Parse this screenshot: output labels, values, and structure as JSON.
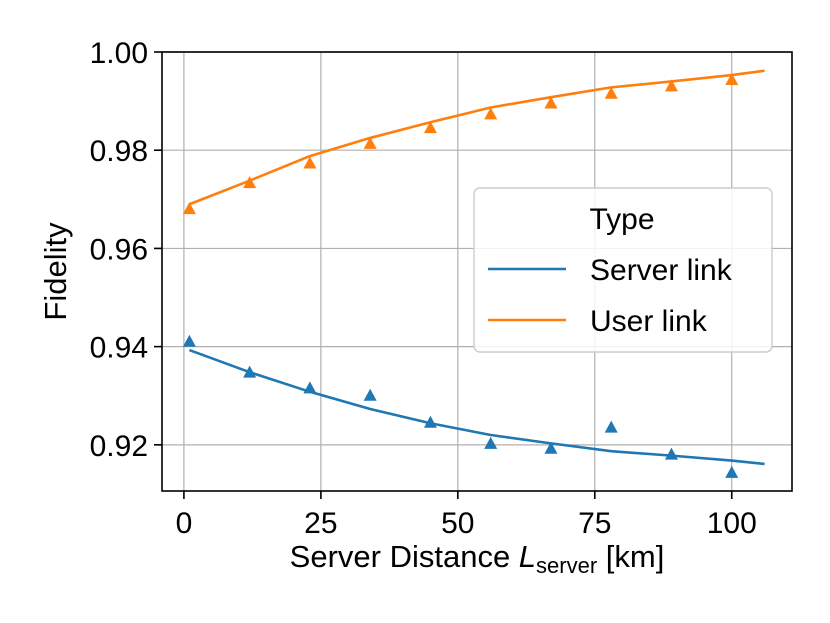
{
  "chart_data": {
    "type": "line",
    "xlabel_main": "Server Distance ",
    "xlabel_var": "L",
    "xlabel_sub": "server",
    "xlabel_unit": " [km]",
    "ylabel": "Fidelity",
    "xlim": [
      -4,
      111
    ],
    "ylim": [
      0.9106,
      1.0
    ],
    "xticks": [
      0,
      25,
      50,
      75,
      100
    ],
    "xtick_labels": [
      "0",
      "25",
      "50",
      "75",
      "100"
    ],
    "yticks": [
      0.92,
      0.94,
      0.96,
      0.98,
      1.0
    ],
    "ytick_labels": [
      "0.92",
      "0.94",
      "0.96",
      "0.98",
      "1.00"
    ],
    "grid": true,
    "legend": {
      "title": "Type",
      "placement": "center-right"
    },
    "series": [
      {
        "name": "Server link",
        "color": "#1f77b4",
        "line": {
          "x": [
            1,
            12,
            23,
            34,
            45,
            56,
            67,
            78,
            89,
            100,
            106
          ],
          "y": [
            0.9393,
            0.9348,
            0.9308,
            0.9273,
            0.9244,
            0.922,
            0.9203,
            0.9187,
            0.9178,
            0.9168,
            0.9161
          ]
        },
        "points": {
          "marker": "triangle",
          "x": [
            1,
            12,
            23,
            34,
            45,
            56,
            67,
            78,
            89,
            100
          ],
          "y": [
            0.941,
            0.9347,
            0.9315,
            0.93,
            0.9245,
            0.9202,
            0.9192,
            0.9235,
            0.918,
            0.9143
          ]
        }
      },
      {
        "name": "User link",
        "color": "#ff7f0e",
        "line": {
          "x": [
            1,
            12,
            23,
            34,
            45,
            56,
            67,
            78,
            89,
            100,
            106
          ],
          "y": [
            0.969,
            0.9738,
            0.9788,
            0.9825,
            0.9857,
            0.9887,
            0.9908,
            0.9928,
            0.994,
            0.9953,
            0.9962
          ]
        },
        "points": {
          "marker": "triangle",
          "x": [
            1,
            12,
            23,
            34,
            45,
            56,
            67,
            78,
            89,
            100
          ],
          "y": [
            0.968,
            0.9733,
            0.9773,
            0.9813,
            0.9845,
            0.9873,
            0.9895,
            0.9915,
            0.993,
            0.9943
          ]
        }
      }
    ]
  }
}
